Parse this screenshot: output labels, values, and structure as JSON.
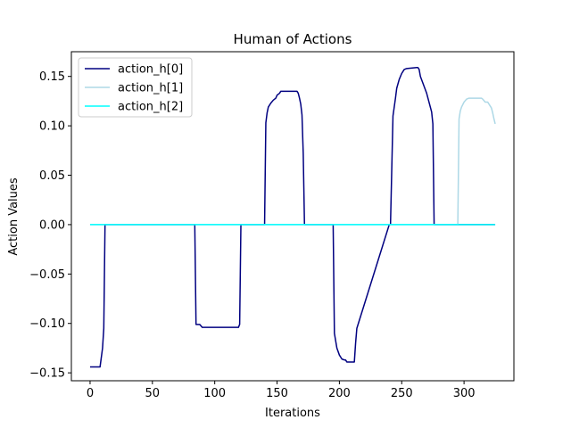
{
  "chart_data": {
    "type": "line",
    "title": "Human of Actions",
    "xlabel": "Iterations",
    "ylabel": "Action Values",
    "xlim": [
      -15,
      340
    ],
    "ylim": [
      -0.158,
      0.175
    ],
    "xticks": [
      0,
      50,
      100,
      150,
      200,
      250,
      300
    ],
    "yticks": [
      -0.15,
      -0.1,
      -0.05,
      0.0,
      0.05,
      0.1,
      0.15
    ],
    "ytick_labels": [
      "−0.15",
      "−0.10",
      "−0.05",
      "0.00",
      "0.05",
      "0.10",
      "0.15"
    ],
    "grid": false,
    "legend_position": "upper-left",
    "series": [
      {
        "name": "action_h[0]",
        "color": "#000080",
        "x": [
          0,
          3,
          6,
          8,
          10,
          11,
          12,
          84,
          85,
          88,
          90,
          100,
          110,
          119,
          120,
          121,
          140,
          141,
          142,
          143,
          145,
          147,
          149,
          150,
          151,
          152,
          153,
          155,
          160,
          166,
          167,
          168,
          169,
          170,
          171,
          172,
          195,
          196,
          198,
          200,
          202,
          204,
          205,
          206,
          208,
          210,
          212,
          213,
          214,
          240,
          241,
          243,
          245,
          246,
          248,
          250,
          252,
          254,
          262,
          263,
          264,
          265,
          270,
          274,
          275,
          276,
          325
        ],
        "y": [
          -0.144,
          -0.144,
          -0.144,
          -0.144,
          -0.125,
          -0.105,
          0,
          0,
          -0.101,
          -0.101,
          -0.104,
          -0.104,
          -0.104,
          -0.104,
          -0.101,
          0,
          0,
          0.103,
          0.113,
          0.119,
          0.123,
          0.126,
          0.128,
          0.131,
          0.132,
          0.133,
          0.135,
          0.135,
          0.135,
          0.135,
          0.133,
          0.128,
          0.122,
          0.111,
          0.072,
          0,
          0,
          -0.11,
          -0.125,
          -0.132,
          -0.136,
          -0.137,
          -0.137,
          -0.139,
          -0.139,
          -0.139,
          -0.139,
          -0.12,
          -0.105,
          0,
          0,
          0.11,
          0.128,
          0.138,
          0.147,
          0.153,
          0.157,
          0.158,
          0.159,
          0.159,
          0.157,
          0.15,
          0.133,
          0.114,
          0.102,
          0,
          0
        ]
      },
      {
        "name": "action_h[1]",
        "color": "#add8e6",
        "x": [
          0,
          295,
          296,
          297,
          298,
          300,
          302,
          304,
          306,
          310,
          314,
          315,
          317,
          319,
          321,
          322,
          323,
          324,
          325
        ],
        "y": [
          0,
          0,
          0.107,
          0.115,
          0.119,
          0.124,
          0.127,
          0.128,
          0.128,
          0.128,
          0.128,
          0.127,
          0.124,
          0.124,
          0.12,
          0.118,
          0.113,
          0.107,
          0.102
        ]
      },
      {
        "name": "action_h[2]",
        "color": "#00ffff",
        "x": [
          0,
          325
        ],
        "y": [
          0,
          0
        ]
      }
    ]
  }
}
